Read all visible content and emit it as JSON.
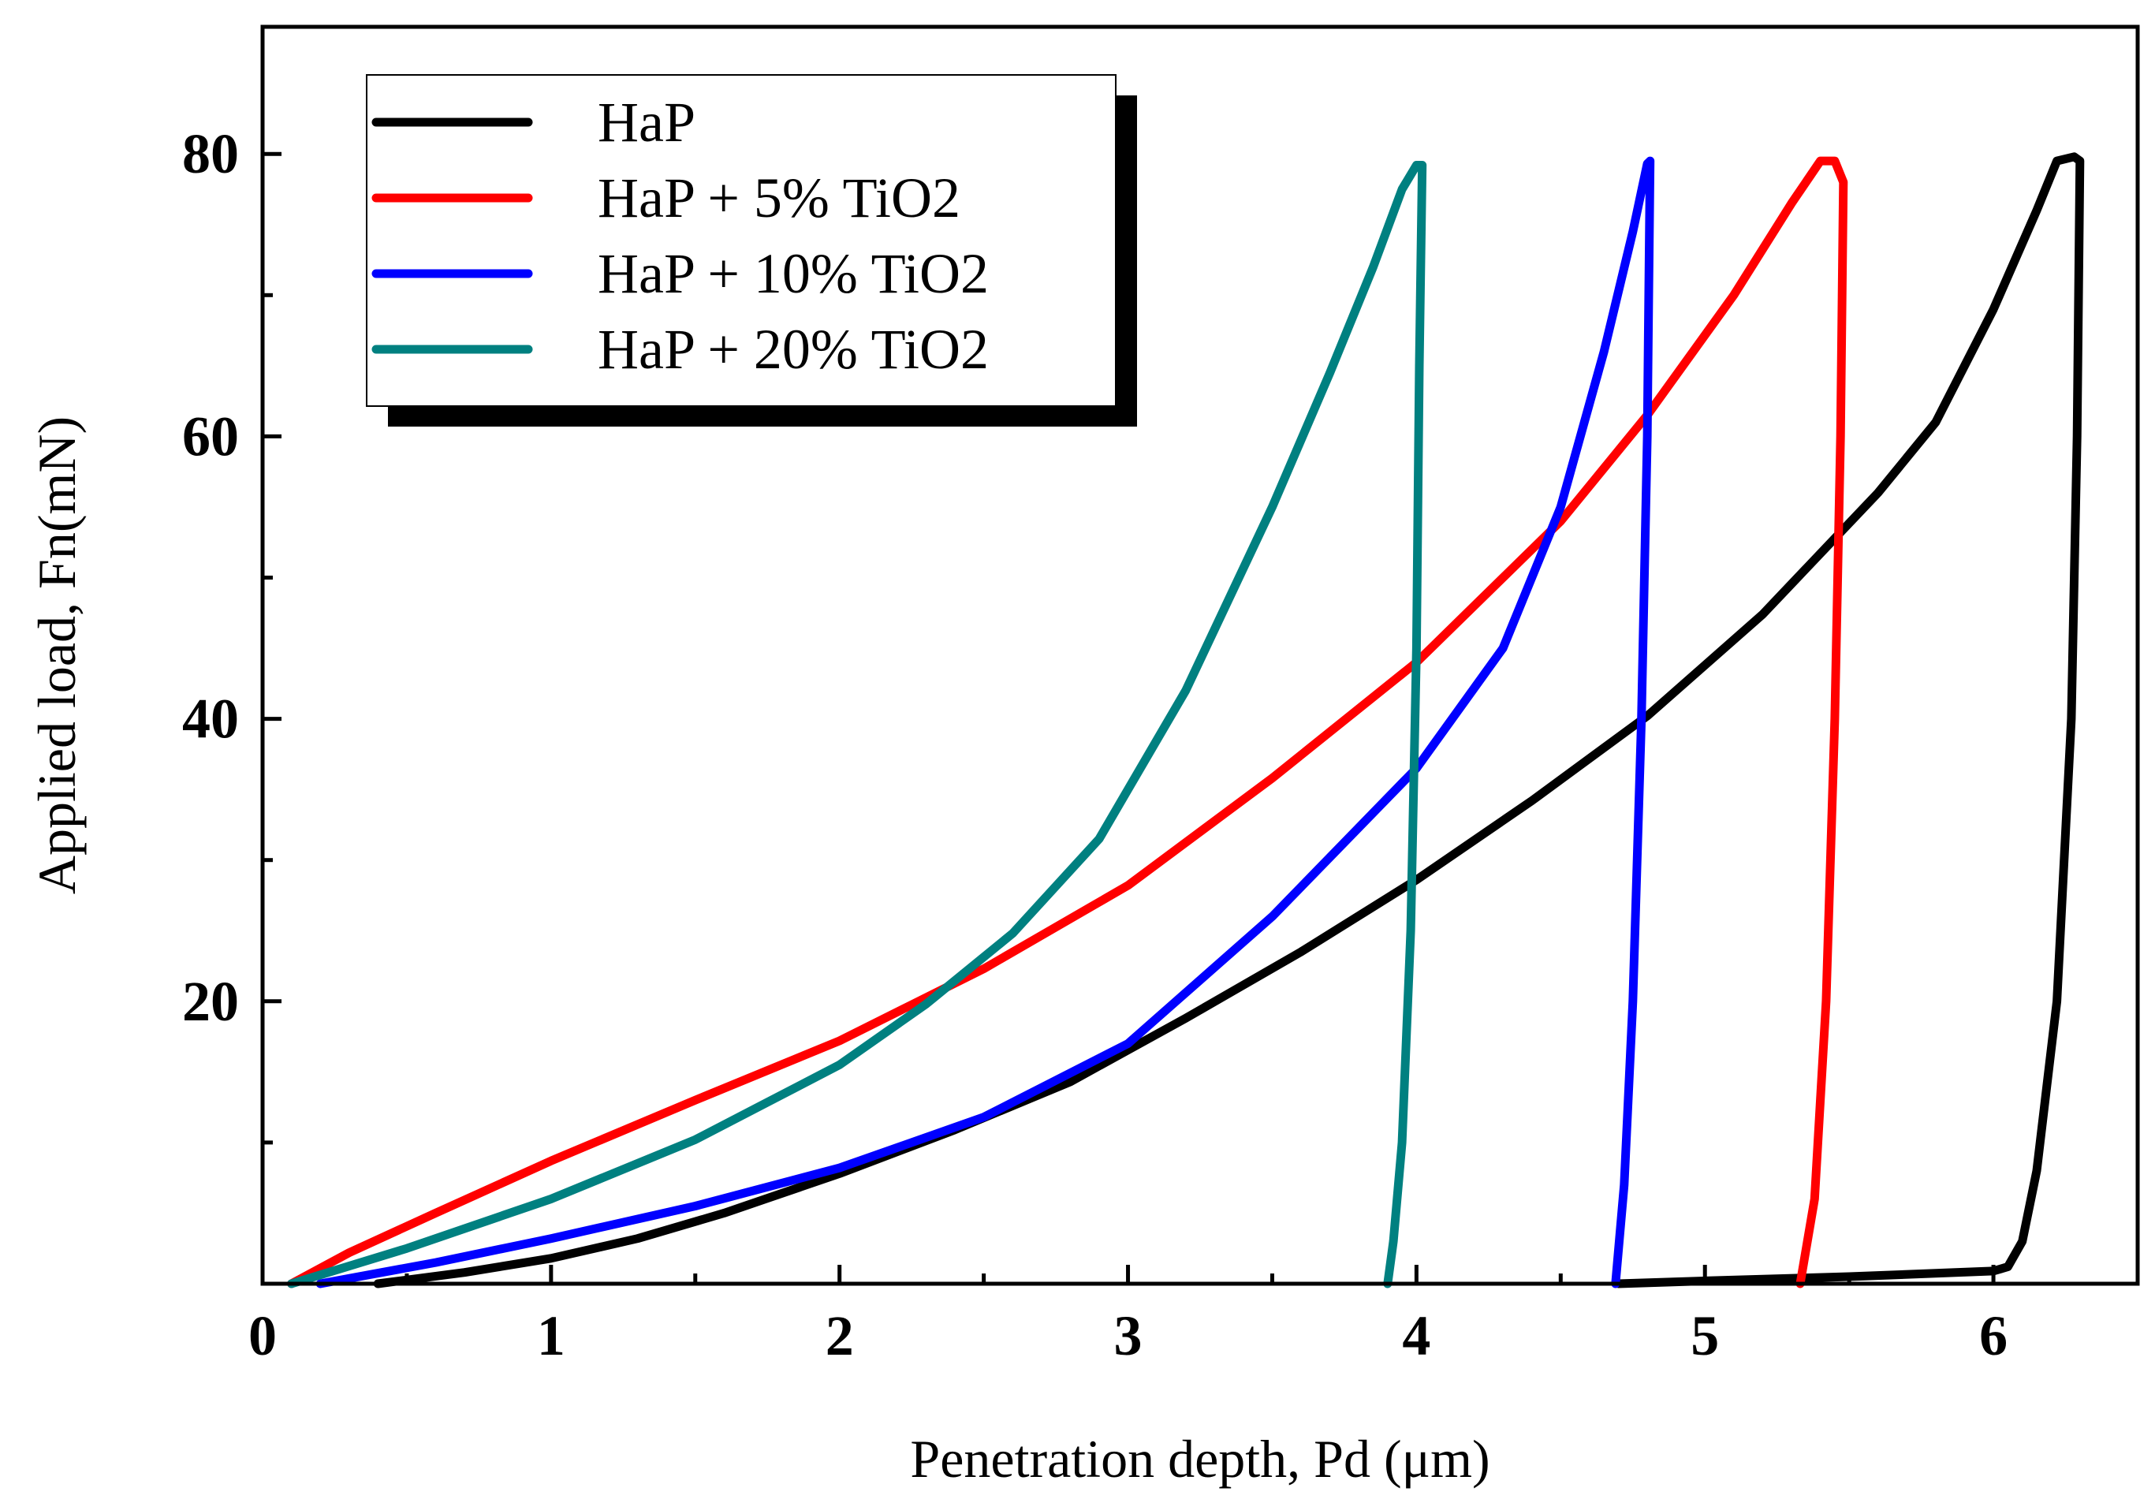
{
  "chart_data": {
    "type": "line",
    "title": "",
    "xlabel": "Penetration depth, Pd (μm)",
    "ylabel": "Applied load, Fn(mN)",
    "xlim": [
      0,
      6.5
    ],
    "ylim": [
      0,
      89
    ],
    "x_ticks": [
      0,
      1,
      2,
      3,
      4,
      5,
      6
    ],
    "x_minor_ticks": [
      0.5,
      1.5,
      2.5,
      3.5,
      4.5,
      5.5
    ],
    "x_tick_labels": [
      "0",
      "1",
      "2",
      "3",
      "4",
      "5",
      "6"
    ],
    "y_ticks": [
      20,
      40,
      60,
      80
    ],
    "y_minor_ticks": [
      10,
      30,
      50,
      70
    ],
    "y_tick_labels": [
      "20",
      "40",
      "60",
      "80"
    ],
    "grid": false,
    "legend_position": "top-left",
    "series": [
      {
        "name": "HaP",
        "color": "#000000",
        "x": [
          0.4,
          0.7,
          1.0,
          1.3,
          1.6,
          2.0,
          2.4,
          2.8,
          3.2,
          3.6,
          4.0,
          4.4,
          4.8,
          5.2,
          5.6,
          5.8,
          6.0,
          6.15,
          6.22,
          6.28,
          6.3,
          6.29,
          6.27,
          6.22,
          6.15,
          6.1,
          6.05,
          6.0,
          5.5,
          5.0,
          4.7
        ],
        "y": [
          0,
          0.8,
          1.8,
          3.2,
          5.0,
          7.8,
          10.9,
          14.3,
          18.8,
          23.5,
          28.6,
          34.2,
          40.2,
          47.4,
          56.0,
          61.0,
          69.0,
          76.0,
          79.5,
          79.8,
          79.5,
          60.0,
          40.0,
          20.0,
          8.0,
          3.0,
          1.2,
          0.9,
          0.5,
          0.2,
          0.0
        ]
      },
      {
        "name": "HaP + 5% TiO2",
        "color": "#ff0000",
        "x": [
          0.1,
          0.3,
          0.6,
          1.0,
          1.5,
          2.0,
          2.5,
          3.0,
          3.5,
          4.0,
          4.5,
          4.8,
          5.1,
          5.3,
          5.4,
          5.45,
          5.48,
          5.47,
          5.45,
          5.42,
          5.38,
          5.33
        ],
        "y": [
          0,
          2.2,
          5.0,
          8.7,
          13.0,
          17.2,
          22.3,
          28.2,
          35.8,
          44.0,
          54.0,
          61.5,
          70.0,
          76.5,
          79.5,
          79.5,
          78.0,
          60.0,
          40.0,
          20.0,
          6.0,
          0.0
        ]
      },
      {
        "name": "HaP + 10% TiO2",
        "color": "#0000ff",
        "x": [
          0.2,
          0.6,
          1.0,
          1.5,
          2.0,
          2.5,
          3.0,
          3.5,
          4.0,
          4.3,
          4.5,
          4.65,
          4.75,
          4.8,
          4.81,
          4.8,
          4.78,
          4.75,
          4.72,
          4.69
        ],
        "y": [
          0,
          1.5,
          3.2,
          5.5,
          8.2,
          11.8,
          17.0,
          26.0,
          36.5,
          45.0,
          55.0,
          66.0,
          74.5,
          79.3,
          79.5,
          60.0,
          40.0,
          20.0,
          7.0,
          0.0
        ]
      },
      {
        "name": "HaP + 20% TiO2",
        "color": "#008080",
        "x": [
          0.1,
          0.5,
          1.0,
          1.5,
          2.0,
          2.3,
          2.6,
          2.9,
          3.2,
          3.5,
          3.7,
          3.85,
          3.95,
          4.0,
          4.02,
          4.01,
          4.0,
          3.98,
          3.95,
          3.92,
          3.9
        ],
        "y": [
          0,
          2.5,
          6.0,
          10.2,
          15.5,
          19.8,
          24.8,
          31.5,
          42.0,
          55.0,
          64.5,
          72.0,
          77.5,
          79.2,
          79.2,
          65.0,
          45.0,
          25.0,
          10.0,
          3.0,
          0.0
        ]
      }
    ]
  }
}
